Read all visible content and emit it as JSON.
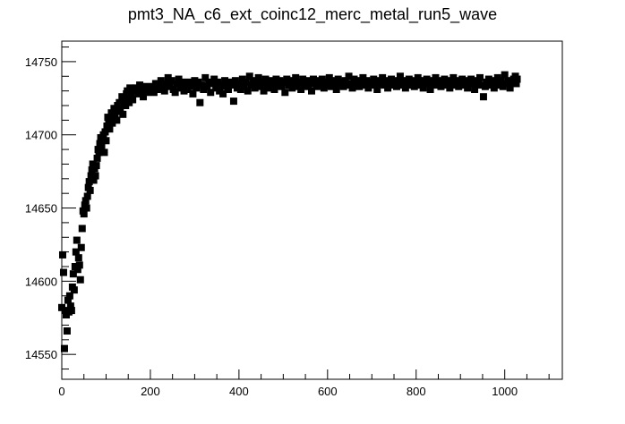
{
  "chart_data": {
    "type": "scatter",
    "title": "pmt3_NA_c6_ext_coinc12_merc_metal_run5_wave",
    "xlabel": "",
    "ylabel": "",
    "xlim": [
      0,
      1130
    ],
    "ylim": [
      14533,
      14764
    ],
    "x_ticks": [
      0,
      200,
      400,
      600,
      800,
      1000
    ],
    "y_ticks": [
      14550,
      14600,
      14650,
      14700,
      14750
    ],
    "marker": "square",
    "marker_color": "#000000",
    "grid": false,
    "series": [
      {
        "points": [
          [
            0,
            14582
          ],
          [
            2,
            14618
          ],
          [
            4,
            14606
          ],
          [
            6,
            14554
          ],
          [
            8,
            14580
          ],
          [
            10,
            14577
          ],
          [
            12,
            14566
          ],
          [
            14,
            14587
          ],
          [
            16,
            14579
          ],
          [
            18,
            14590
          ],
          [
            20,
            14583
          ],
          [
            22,
            14580
          ],
          [
            24,
            14596
          ],
          [
            26,
            14605
          ],
          [
            28,
            14594
          ],
          [
            30,
            14610
          ],
          [
            32,
            14620
          ],
          [
            34,
            14628
          ],
          [
            36,
            14608
          ],
          [
            38,
            14616
          ],
          [
            40,
            14611
          ],
          [
            42,
            14601
          ],
          [
            44,
            14623
          ],
          [
            46,
            14636
          ],
          [
            48,
            14648
          ],
          [
            50,
            14646
          ],
          [
            52,
            14652
          ],
          [
            54,
            14655
          ],
          [
            56,
            14650
          ],
          [
            58,
            14658
          ],
          [
            60,
            14664
          ],
          [
            62,
            14668
          ],
          [
            64,
            14662
          ],
          [
            66,
            14672
          ],
          [
            68,
            14676
          ],
          [
            70,
            14680
          ],
          [
            72,
            14669
          ],
          [
            74,
            14677
          ],
          [
            76,
            14672
          ],
          [
            78,
            14679
          ],
          [
            80,
            14684
          ],
          [
            82,
            14690
          ],
          [
            84,
            14688
          ],
          [
            86,
            14694
          ],
          [
            88,
            14698
          ],
          [
            90,
            14692
          ],
          [
            92,
            14697
          ],
          [
            94,
            14700
          ],
          [
            96,
            14688
          ],
          [
            98,
            14702
          ],
          [
            100,
            14696
          ],
          [
            102,
            14706
          ],
          [
            104,
            14712
          ],
          [
            106,
            14708
          ],
          [
            108,
            14704
          ],
          [
            110,
            14710
          ],
          [
            112,
            14715
          ],
          [
            114,
            14708
          ],
          [
            116,
            14712
          ],
          [
            118,
            14718
          ],
          [
            120,
            14714
          ],
          [
            122,
            14716
          ],
          [
            124,
            14710
          ],
          [
            126,
            14720
          ],
          [
            128,
            14718
          ],
          [
            130,
            14722
          ],
          [
            132,
            14716
          ],
          [
            134,
            14720
          ],
          [
            136,
            14726
          ],
          [
            138,
            14714
          ],
          [
            140,
            14722
          ],
          [
            142,
            14724
          ],
          [
            144,
            14720
          ],
          [
            146,
            14728
          ],
          [
            148,
            14730
          ],
          [
            150,
            14726
          ],
          [
            152,
            14722
          ],
          [
            154,
            14732
          ],
          [
            156,
            14728
          ],
          [
            158,
            14730
          ],
          [
            160,
            14724
          ],
          [
            164,
            14730
          ],
          [
            168,
            14732
          ],
          [
            172,
            14728
          ],
          [
            176,
            14734
          ],
          [
            180,
            14730
          ],
          [
            184,
            14726
          ],
          [
            188,
            14733
          ],
          [
            192,
            14729
          ],
          [
            196,
            14732
          ],
          [
            200,
            14730
          ],
          [
            204,
            14733
          ],
          [
            208,
            14729
          ],
          [
            212,
            14735
          ],
          [
            216,
            14731
          ],
          [
            220,
            14734
          ],
          [
            224,
            14737
          ],
          [
            228,
            14732
          ],
          [
            232,
            14730
          ],
          [
            236,
            14735
          ],
          [
            240,
            14739
          ],
          [
            244,
            14733
          ],
          [
            248,
            14737
          ],
          [
            252,
            14731
          ],
          [
            256,
            14729
          ],
          [
            260,
            14735
          ],
          [
            264,
            14738
          ],
          [
            268,
            14732
          ],
          [
            272,
            14736
          ],
          [
            276,
            14730
          ],
          [
            280,
            14734
          ],
          [
            284,
            14731
          ],
          [
            288,
            14736
          ],
          [
            292,
            14733
          ],
          [
            296,
            14728
          ],
          [
            300,
            14737
          ],
          [
            304,
            14732
          ],
          [
            308,
            14736
          ],
          [
            312,
            14722
          ],
          [
            316,
            14734
          ],
          [
            320,
            14731
          ],
          [
            324,
            14739
          ],
          [
            328,
            14733
          ],
          [
            332,
            14736
          ],
          [
            336,
            14729
          ],
          [
            340,
            14735
          ],
          [
            344,
            14738
          ],
          [
            348,
            14732
          ],
          [
            352,
            14736
          ],
          [
            356,
            14730
          ],
          [
            360,
            14734
          ],
          [
            364,
            14728
          ],
          [
            368,
            14737
          ],
          [
            372,
            14733
          ],
          [
            376,
            14731
          ],
          [
            380,
            14736
          ],
          [
            384,
            14734
          ],
          [
            388,
            14723
          ],
          [
            392,
            14737
          ],
          [
            396,
            14732
          ],
          [
            400,
            14735
          ],
          [
            404,
            14731
          ],
          [
            408,
            14738
          ],
          [
            412,
            14733
          ],
          [
            416,
            14736
          ],
          [
            420,
            14730
          ],
          [
            424,
            14740
          ],
          [
            428,
            14734
          ],
          [
            432,
            14737
          ],
          [
            436,
            14732
          ],
          [
            440,
            14736
          ],
          [
            444,
            14739
          ],
          [
            448,
            14733
          ],
          [
            452,
            14736
          ],
          [
            456,
            14730
          ],
          [
            460,
            14738
          ],
          [
            464,
            14734
          ],
          [
            468,
            14737
          ],
          [
            472,
            14732
          ],
          [
            476,
            14735
          ],
          [
            480,
            14731
          ],
          [
            484,
            14738
          ],
          [
            488,
            14734
          ],
          [
            492,
            14737
          ],
          [
            496,
            14733
          ],
          [
            500,
            14736
          ],
          [
            504,
            14729
          ],
          [
            508,
            14738
          ],
          [
            512,
            14734
          ],
          [
            516,
            14737
          ],
          [
            520,
            14732
          ],
          [
            524,
            14735
          ],
          [
            528,
            14739
          ],
          [
            532,
            14733
          ],
          [
            536,
            14736
          ],
          [
            540,
            14731
          ],
          [
            544,
            14738
          ],
          [
            548,
            14734
          ],
          [
            552,
            14737
          ],
          [
            556,
            14733
          ],
          [
            560,
            14736
          ],
          [
            564,
            14730
          ],
          [
            568,
            14738
          ],
          [
            572,
            14735
          ],
          [
            576,
            14733
          ],
          [
            580,
            14737
          ],
          [
            584,
            14734
          ],
          [
            588,
            14738
          ],
          [
            592,
            14732
          ],
          [
            596,
            14736
          ],
          [
            600,
            14734
          ],
          [
            604,
            14739
          ],
          [
            608,
            14733
          ],
          [
            612,
            14737
          ],
          [
            616,
            14735
          ],
          [
            620,
            14731
          ],
          [
            624,
            14738
          ],
          [
            628,
            14734
          ],
          [
            632,
            14736
          ],
          [
            636,
            14733
          ],
          [
            640,
            14737
          ],
          [
            644,
            14734
          ],
          [
            648,
            14740
          ],
          [
            652,
            14735
          ],
          [
            656,
            14732
          ],
          [
            660,
            14738
          ],
          [
            664,
            14735
          ],
          [
            668,
            14737
          ],
          [
            672,
            14733
          ],
          [
            676,
            14736
          ],
          [
            680,
            14739
          ],
          [
            684,
            14734
          ],
          [
            688,
            14737
          ],
          [
            692,
            14732
          ],
          [
            696,
            14736
          ],
          [
            700,
            14734
          ],
          [
            704,
            14738
          ],
          [
            708,
            14735
          ],
          [
            712,
            14731
          ],
          [
            716,
            14737
          ],
          [
            720,
            14735
          ],
          [
            724,
            14739
          ],
          [
            728,
            14734
          ],
          [
            732,
            14737
          ],
          [
            736,
            14732
          ],
          [
            740,
            14736
          ],
          [
            744,
            14738
          ],
          [
            748,
            14734
          ],
          [
            752,
            14737
          ],
          [
            756,
            14733
          ],
          [
            760,
            14736
          ],
          [
            764,
            14740
          ],
          [
            768,
            14734
          ],
          [
            772,
            14737
          ],
          [
            776,
            14732
          ],
          [
            780,
            14736
          ],
          [
            784,
            14738
          ],
          [
            788,
            14734
          ],
          [
            792,
            14737
          ],
          [
            796,
            14733
          ],
          [
            800,
            14736
          ],
          [
            804,
            14739
          ],
          [
            808,
            14734
          ],
          [
            812,
            14737
          ],
          [
            816,
            14732
          ],
          [
            820,
            14736
          ],
          [
            824,
            14738
          ],
          [
            828,
            14735
          ],
          [
            832,
            14731
          ],
          [
            836,
            14737
          ],
          [
            840,
            14735
          ],
          [
            844,
            14739
          ],
          [
            848,
            14734
          ],
          [
            852,
            14737
          ],
          [
            856,
            14733
          ],
          [
            860,
            14736
          ],
          [
            864,
            14738
          ],
          [
            868,
            14734
          ],
          [
            872,
            14737
          ],
          [
            876,
            14732
          ],
          [
            880,
            14736
          ],
          [
            884,
            14739
          ],
          [
            888,
            14734
          ],
          [
            892,
            14737
          ],
          [
            896,
            14733
          ],
          [
            900,
            14736
          ],
          [
            904,
            14738
          ],
          [
            908,
            14734
          ],
          [
            912,
            14737
          ],
          [
            916,
            14732
          ],
          [
            920,
            14736
          ],
          [
            924,
            14738
          ],
          [
            928,
            14735
          ],
          [
            932,
            14731
          ],
          [
            936,
            14737
          ],
          [
            940,
            14735
          ],
          [
            944,
            14739
          ],
          [
            948,
            14734
          ],
          [
            952,
            14726
          ],
          [
            956,
            14733
          ],
          [
            960,
            14736
          ],
          [
            964,
            14738
          ],
          [
            968,
            14734
          ],
          [
            972,
            14737
          ],
          [
            976,
            14732
          ],
          [
            980,
            14736
          ],
          [
            984,
            14739
          ],
          [
            988,
            14734
          ],
          [
            992,
            14737
          ],
          [
            996,
            14733
          ],
          [
            1000,
            14741
          ],
          [
            1004,
            14735
          ],
          [
            1008,
            14737
          ],
          [
            1012,
            14732
          ],
          [
            1016,
            14736
          ],
          [
            1020,
            14738
          ],
          [
            1024,
            14740
          ],
          [
            1026,
            14735
          ],
          [
            1028,
            14738
          ]
        ]
      }
    ]
  }
}
